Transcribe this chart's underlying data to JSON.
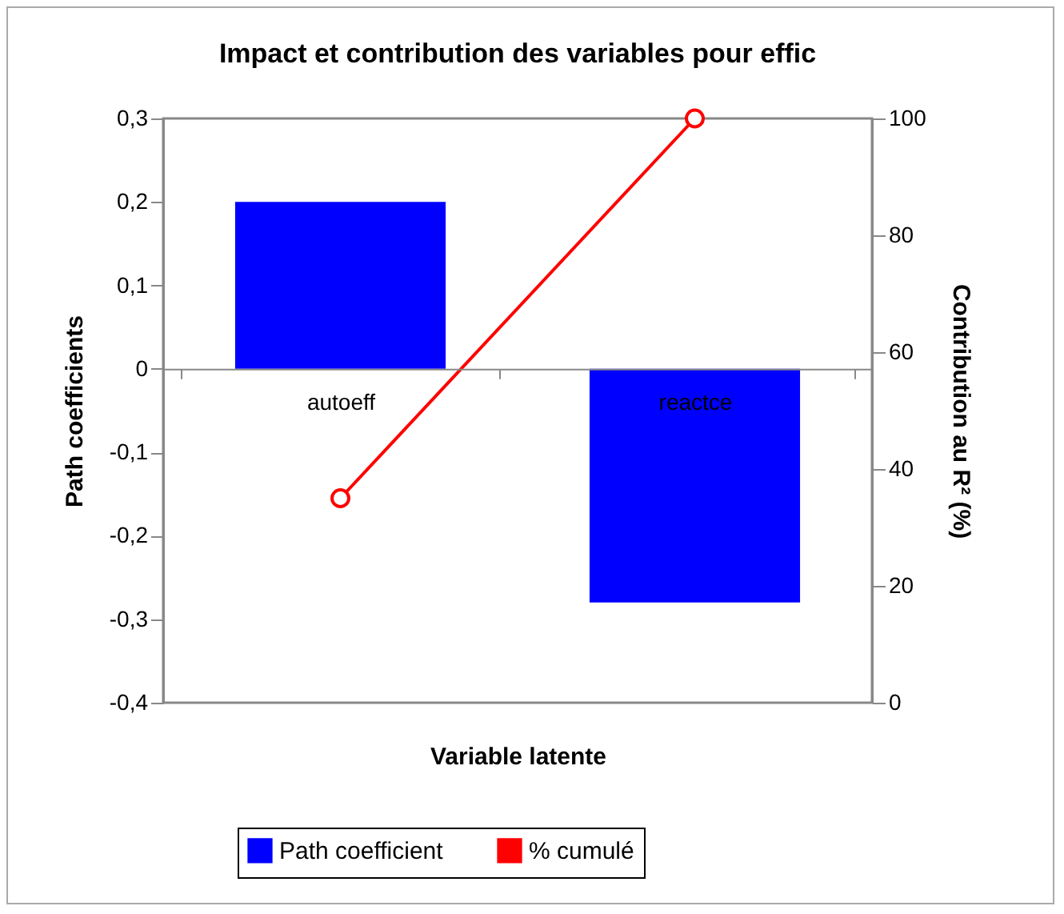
{
  "chart_data": {
    "type": "bar",
    "title": "Impact et contribution des variables pour effic",
    "xlabel": "Variable latente",
    "ylabel": "Path coefficients",
    "y2label": "Contribution au R² (%)",
    "categories": [
      "autoeff",
      "reactce"
    ],
    "series": [
      {
        "name": "Path coefficient",
        "color": "#0000ff",
        "values": [
          0.2,
          -0.28
        ]
      },
      {
        "name": "% cumulé",
        "type": "line",
        "axis": "y2",
        "color": "#ff0000",
        "values": [
          35,
          100
        ]
      }
    ],
    "ylim": [
      -0.4,
      0.3
    ],
    "yticks": [
      {
        "value": -0.4,
        "label": "-0,4"
      },
      {
        "value": -0.3,
        "label": "-0,3"
      },
      {
        "value": -0.2,
        "label": "-0,2"
      },
      {
        "value": -0.1,
        "label": "-0,1"
      },
      0,
      {
        "value": 0.1,
        "label": "0,1"
      },
      {
        "value": 0.2,
        "label": "0,2"
      },
      {
        "value": 0.3,
        "label": "0,3"
      }
    ],
    "y2lim": [
      0,
      100
    ],
    "y2ticks": [
      0,
      20,
      40,
      60,
      80,
      100
    ],
    "grid": false,
    "legend": "bottom",
    "marker": "circle",
    "line_style": "solid"
  }
}
